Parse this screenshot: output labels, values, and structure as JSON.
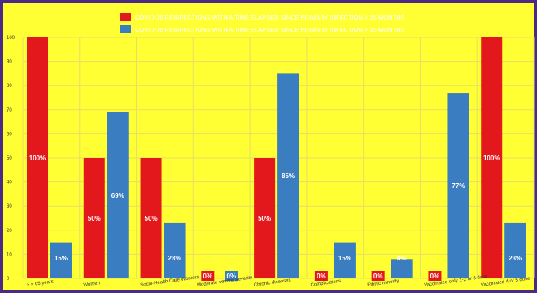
{
  "chart_data": {
    "type": "bar",
    "title": "",
    "xlabel": "",
    "ylabel": "",
    "ylim": [
      0,
      100
    ],
    "yticks": [
      0,
      10,
      20,
      30,
      40,
      50,
      60,
      70,
      80,
      90,
      100
    ],
    "grid": true,
    "legend_position": "top-center",
    "categories": [
      "> = 65 years",
      "Women",
      "Socio-Health Care Workers",
      "Moderate-severe Severity",
      "Chronic diseases",
      "Complications",
      "Ethnic minority",
      "Vaccinated only 1-2 or 3 dose",
      "Vaccinated 4 or 5 dose"
    ],
    "series": [
      {
        "name": "COVID-19 REINFECTIONS WITH A TIME ELAPSED SINCE PRIMARY INFECTION < 15 MONTHS",
        "color": "#e3181d",
        "values": [
          100,
          50,
          50,
          0,
          50,
          0,
          0,
          0,
          100
        ],
        "labels": [
          "100%",
          "50%",
          "50%",
          "0%",
          "50%",
          "0%",
          "0%",
          "0%",
          "100%"
        ]
      },
      {
        "name": "COVID-19 REINFECTIONS WITH A TIME ELAPSED SINCE PRIMARY INFECTION > 15 MONTHS",
        "color": "#3a7dc0",
        "values": [
          15,
          69,
          23,
          0,
          85,
          15,
          8,
          77,
          23
        ],
        "labels": [
          "15%",
          "69%",
          "23%",
          "0%",
          "85%",
          "15%",
          "8%",
          "77%",
          "23%"
        ]
      }
    ]
  }
}
